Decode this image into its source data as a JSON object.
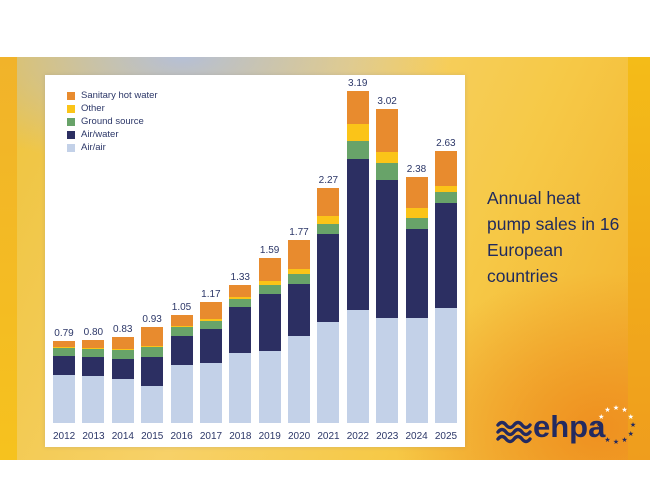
{
  "slide": {
    "title": "Annual heat pump sales in 16 European countries",
    "logo": {
      "text": "ehpa",
      "icon": "triple-wave-icon",
      "star_count": 12
    }
  },
  "colors": {
    "sanitary_hot_water": "#e88b2e",
    "other": "#fbc418",
    "ground_source": "#68a369",
    "air_water": "#2c2f62",
    "air_air": "#c3d1e8",
    "text_navy": "#2c3768",
    "title_navy": "#1f2a5e",
    "panel_white": "#ffffff",
    "gold": "#f3ba1c",
    "blue_gray_tint": "#b2bfdd",
    "orange_corner": "#ee8c1e"
  },
  "chart_data": {
    "type": "bar",
    "stacked": true,
    "title": "Annual heat pump sales in 16 European countries",
    "xlabel": "",
    "ylabel": "",
    "axes_shown": false,
    "grid": false,
    "value_labels_shown": true,
    "legend_position": "top-left",
    "ylim": [
      0,
      3.5
    ],
    "categories": [
      "2012",
      "2013",
      "2014",
      "2015",
      "2016",
      "2017",
      "2018",
      "2019",
      "2020",
      "2021",
      "2022",
      "2023",
      "2024",
      "2025"
    ],
    "totals": [
      0.79,
      0.8,
      0.83,
      0.93,
      1.05,
      1.17,
      1.33,
      1.59,
      1.77,
      2.27,
      3.19,
      3.02,
      2.38,
      2.63
    ],
    "series": [
      {
        "name": "Air/air",
        "color": "#c3d1e8",
        "values": [
          0.46,
          0.45,
          0.42,
          0.36,
          0.56,
          0.58,
          0.67,
          0.69,
          0.84,
          0.97,
          1.09,
          1.01,
          1.01,
          1.11
        ]
      },
      {
        "name": "Air/water",
        "color": "#2c2f62",
        "values": [
          0.18,
          0.18,
          0.19,
          0.28,
          0.28,
          0.33,
          0.44,
          0.55,
          0.5,
          0.85,
          1.45,
          1.33,
          0.86,
          1.01
        ]
      },
      {
        "name": "Ground source",
        "color": "#68a369",
        "values": [
          0.08,
          0.08,
          0.09,
          0.1,
          0.09,
          0.08,
          0.08,
          0.09,
          0.1,
          0.1,
          0.17,
          0.16,
          0.11,
          0.11
        ]
      },
      {
        "name": "Other",
        "color": "#fbc418",
        "values": [
          0.01,
          0.01,
          0.01,
          0.01,
          0.01,
          0.02,
          0.02,
          0.04,
          0.05,
          0.08,
          0.16,
          0.11,
          0.1,
          0.06
        ]
      },
      {
        "name": "Sanitary hot water",
        "color": "#e88b2e",
        "values": [
          0.06,
          0.08,
          0.12,
          0.18,
          0.11,
          0.16,
          0.12,
          0.22,
          0.28,
          0.27,
          0.32,
          0.41,
          0.3,
          0.34
        ]
      }
    ]
  }
}
